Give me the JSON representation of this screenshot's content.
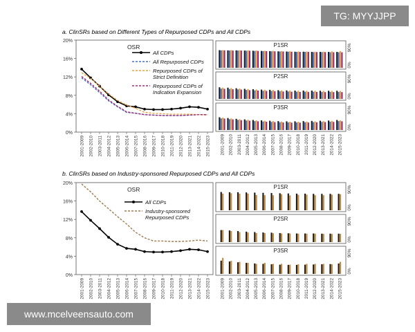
{
  "watermarks": {
    "top": "TG: MYYJJPP",
    "bottom": "www.mcelveensauto.com"
  },
  "periods": [
    "2001-2009",
    "2002-2010",
    "2003-2011",
    "2004-2012",
    "2005-2013",
    "2006-2014",
    "2007-2015",
    "2008-2016",
    "2009-2017",
    "2010-2018",
    "2011-2019",
    "2012-2020",
    "2013-2021",
    "2014-2022",
    "2015-2023"
  ],
  "chart_data": [
    {
      "type": "line",
      "title": "a. ClinSRs based on Different Types of Repurposed CDPs and All CDPs",
      "panel": "OSR",
      "ylim": [
        0,
        0.2
      ],
      "yticks": [
        "0%",
        "4%",
        "8%",
        "12%",
        "16%",
        "20%"
      ],
      "grid": false,
      "legend_position": "top-right",
      "series": [
        {
          "name": "All CDPs",
          "color": "#000000",
          "style": "solid-markers",
          "values": [
            0.137,
            0.118,
            0.1,
            0.081,
            0.066,
            0.057,
            0.055,
            0.05,
            0.049,
            0.049,
            0.05,
            0.052,
            0.055,
            0.054,
            0.05
          ]
        },
        {
          "name": "All Repurposed CDPs",
          "color": "#4472c4",
          "style": "dashed",
          "values": [
            0.118,
            0.103,
            0.086,
            0.068,
            0.055,
            0.043,
            0.041,
            0.038,
            0.037,
            0.036,
            0.036,
            0.036,
            0.037,
            0.038,
            0.038
          ]
        },
        {
          "name": "Repurposed CDPs of Strict Definition",
          "color": "#e8a33c",
          "style": "dashed",
          "values": [
            0.129,
            0.117,
            0.1,
            0.083,
            0.069,
            0.059,
            0.052,
            0.043,
            0.041,
            0.04,
            0.039,
            0.039,
            0.039,
            0.038,
            0.037
          ]
        },
        {
          "name": "Repurposed CDPs of Indication Expansion",
          "color": "#9e2a6e",
          "style": "dashed",
          "values": [
            0.121,
            0.106,
            0.089,
            0.07,
            0.056,
            0.044,
            0.041,
            0.038,
            0.037,
            0.036,
            0.036,
            0.036,
            0.037,
            0.038,
            0.038
          ]
        }
      ]
    },
    {
      "type": "bar",
      "title": "a. side panels",
      "panels": [
        "P1SR",
        "P2SR",
        "P3SR"
      ],
      "yticks": [
        "0%",
        "90%"
      ],
      "ylim": [
        0,
        1
      ],
      "series_colors": [
        "#1c1c1c",
        "#4472c4",
        "#e8a33c",
        "#9e2a6e"
      ],
      "series": [
        {
          "panel": "P1SR",
          "values": [
            [
              0.91,
              0.9,
              0.91,
              0.9
            ],
            [
              0.9,
              0.89,
              0.91,
              0.89
            ],
            [
              0.9,
              0.89,
              0.9,
              0.89
            ],
            [
              0.89,
              0.88,
              0.9,
              0.88
            ],
            [
              0.88,
              0.87,
              0.89,
              0.87
            ],
            [
              0.87,
              0.86,
              0.88,
              0.86
            ],
            [
              0.86,
              0.85,
              0.87,
              0.85
            ],
            [
              0.85,
              0.84,
              0.86,
              0.84
            ],
            [
              0.84,
              0.83,
              0.85,
              0.83
            ],
            [
              0.83,
              0.82,
              0.84,
              0.82
            ],
            [
              0.83,
              0.82,
              0.84,
              0.82
            ],
            [
              0.82,
              0.81,
              0.83,
              0.81
            ],
            [
              0.82,
              0.81,
              0.83,
              0.81
            ],
            [
              0.82,
              0.8,
              0.85,
              0.8
            ],
            [
              0.82,
              0.8,
              0.86,
              0.8
            ]
          ]
        },
        {
          "panel": "P2SR",
          "values": [
            [
              0.6,
              0.53,
              0.58,
              0.52
            ],
            [
              0.58,
              0.51,
              0.56,
              0.5
            ],
            [
              0.55,
              0.49,
              0.54,
              0.48
            ],
            [
              0.52,
              0.46,
              0.51,
              0.45
            ],
            [
              0.5,
              0.44,
              0.49,
              0.43
            ],
            [
              0.48,
              0.42,
              0.47,
              0.41
            ],
            [
              0.47,
              0.41,
              0.46,
              0.4
            ],
            [
              0.45,
              0.39,
              0.44,
              0.38
            ],
            [
              0.44,
              0.38,
              0.43,
              0.37
            ],
            [
              0.43,
              0.37,
              0.42,
              0.36
            ],
            [
              0.43,
              0.37,
              0.42,
              0.36
            ],
            [
              0.43,
              0.37,
              0.42,
              0.36
            ],
            [
              0.42,
              0.36,
              0.41,
              0.35
            ],
            [
              0.42,
              0.36,
              0.41,
              0.35
            ],
            [
              0.42,
              0.36,
              0.41,
              0.35
            ]
          ]
        },
        {
          "panel": "P3SR",
          "values": [
            [
              0.66,
              0.6,
              0.64,
              0.59
            ],
            [
              0.62,
              0.56,
              0.6,
              0.55
            ],
            [
              0.58,
              0.52,
              0.56,
              0.51
            ],
            [
              0.55,
              0.49,
              0.53,
              0.48
            ],
            [
              0.52,
              0.46,
              0.5,
              0.45
            ],
            [
              0.5,
              0.44,
              0.48,
              0.43
            ],
            [
              0.48,
              0.42,
              0.46,
              0.41
            ],
            [
              0.46,
              0.4,
              0.44,
              0.39
            ],
            [
              0.45,
              0.39,
              0.43,
              0.38
            ],
            [
              0.45,
              0.39,
              0.43,
              0.38
            ],
            [
              0.46,
              0.4,
              0.44,
              0.39
            ],
            [
              0.47,
              0.41,
              0.45,
              0.4
            ],
            [
              0.48,
              0.42,
              0.46,
              0.41
            ],
            [
              0.49,
              0.43,
              0.47,
              0.42
            ],
            [
              0.52,
              0.46,
              0.5,
              0.45
            ]
          ]
        }
      ]
    },
    {
      "type": "line",
      "title": "b. ClinSRs based on Industry-sponsored Repurposed CDPs and All CDPs",
      "panel": "OSR",
      "ylim": [
        0,
        0.2
      ],
      "yticks": [
        "0%",
        "4%",
        "8%",
        "12%",
        "16%",
        "20%"
      ],
      "grid": false,
      "legend_position": "top-right",
      "series": [
        {
          "name": "All CDPs",
          "color": "#000000",
          "style": "solid-markers",
          "values": [
            0.137,
            0.118,
            0.1,
            0.081,
            0.066,
            0.057,
            0.055,
            0.05,
            0.049,
            0.049,
            0.05,
            0.052,
            0.055,
            0.054,
            0.05
          ]
        },
        {
          "name": "Industry-sponsored Repurposed CDPs",
          "color": "#9c7b4b",
          "style": "dashed",
          "values": [
            0.197,
            0.18,
            0.16,
            0.143,
            0.126,
            0.11,
            0.092,
            0.08,
            0.073,
            0.073,
            0.072,
            0.072,
            0.073,
            0.075,
            0.073
          ]
        }
      ]
    },
    {
      "type": "bar",
      "title": "b. side panels",
      "panels": [
        "P1SR",
        "P2SR",
        "P3SR"
      ],
      "yticks": [
        "0%",
        "90%"
      ],
      "ylim": [
        0,
        1
      ],
      "series_colors": [
        "#1c1c1c",
        "#c48a3c"
      ],
      "series": [
        {
          "panel": "P1SR",
          "values": [
            [
              0.91,
              0.83
            ],
            [
              0.9,
              0.85
            ],
            [
              0.9,
              0.83
            ],
            [
              0.89,
              0.83
            ],
            [
              0.88,
              0.76
            ],
            [
              0.87,
              0.75
            ],
            [
              0.86,
              0.75
            ],
            [
              0.85,
              0.8
            ],
            [
              0.84,
              0.74
            ],
            [
              0.83,
              0.77
            ],
            [
              0.83,
              0.78
            ],
            [
              0.82,
              0.75
            ],
            [
              0.82,
              0.75
            ],
            [
              0.82,
              0.78
            ],
            [
              0.82,
              0.8
            ]
          ]
        },
        {
          "panel": "P2SR",
          "values": [
            [
              0.6,
              0.6
            ],
            [
              0.58,
              0.55
            ],
            [
              0.55,
              0.5
            ],
            [
              0.52,
              0.48
            ],
            [
              0.5,
              0.45
            ],
            [
              0.48,
              0.45
            ],
            [
              0.47,
              0.44
            ],
            [
              0.45,
              0.43
            ],
            [
              0.44,
              0.43
            ],
            [
              0.43,
              0.42
            ],
            [
              0.43,
              0.42
            ],
            [
              0.43,
              0.42
            ],
            [
              0.42,
              0.41
            ],
            [
              0.42,
              0.41
            ],
            [
              0.42,
              0.41
            ]
          ]
        },
        {
          "panel": "P3SR",
          "values": [
            [
              0.66,
              0.8
            ],
            [
              0.62,
              0.65
            ],
            [
              0.58,
              0.6
            ],
            [
              0.55,
              0.55
            ],
            [
              0.52,
              0.5
            ],
            [
              0.5,
              0.55
            ],
            [
              0.48,
              0.5
            ],
            [
              0.46,
              0.5
            ],
            [
              0.45,
              0.46
            ],
            [
              0.45,
              0.48
            ],
            [
              0.46,
              0.5
            ],
            [
              0.47,
              0.5
            ],
            [
              0.48,
              0.5
            ],
            [
              0.49,
              0.48
            ],
            [
              0.52,
              0.6
            ]
          ]
        }
      ]
    }
  ]
}
